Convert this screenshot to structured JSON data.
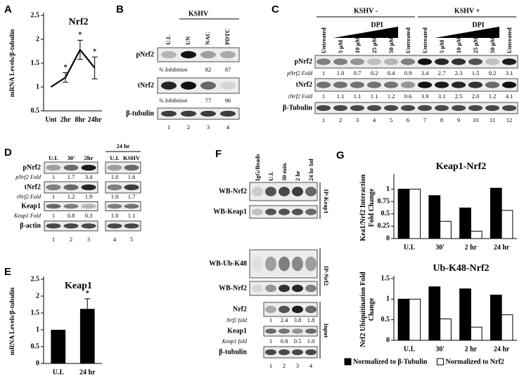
{
  "chart_data": [
    {
      "type": "line",
      "panel_label": "A",
      "title": "Nrf2",
      "y_label": "mRNA Levels/β-tubulin",
      "categories": [
        "Unt",
        "2hr",
        "8hr",
        "24hr"
      ],
      "values": [
        1,
        1.2,
        1.78,
        1.4
      ],
      "errors": [
        null,
        0.1,
        0.2,
        0.23
      ],
      "significance": [
        null,
        "*",
        "*",
        "*"
      ],
      "color": "#000000",
      "ylim": [
        0.5,
        2.5
      ],
      "yticks": [
        0.5,
        1,
        1.5,
        2,
        2.5
      ]
    },
    {
      "type": "bar",
      "panel_label": "E",
      "title": "Keap1",
      "y_label": "mRNA Levels/β-tubulin",
      "categories": [
        "U.I.",
        "24 hr"
      ],
      "values": [
        1,
        1.62
      ],
      "errors": [
        null,
        0.3
      ],
      "significance": [
        null,
        "*"
      ],
      "color": "#000000",
      "ylim": [
        0,
        2.5
      ],
      "yticks": [
        0,
        0.5,
        1,
        1.5,
        2,
        2.5
      ]
    },
    {
      "type": "bar",
      "panel_label": "G",
      "title": "Keap1-Nrf2",
      "y_label": "Kea1/Nrf2 Interaction Fold Change",
      "categories": [
        "U.I.",
        "30'",
        "2 hr",
        "24 hr"
      ],
      "series": [
        {
          "color": "#000000",
          "values": [
            1,
            0.87,
            0.62,
            1.02
          ]
        },
        {
          "color": "#ffffff",
          "values": [
            1,
            0.35,
            0.15,
            0.57
          ]
        }
      ],
      "ylim": [
        0,
        1.25
      ],
      "yticks": [
        0,
        0.25,
        0.5,
        0.75,
        1
      ]
    },
    {
      "type": "bar",
      "title": "Ub-K48-Nrf2",
      "y_label": "Nrf2 Ubiquitination Fold Change",
      "categories": [
        "U.I.",
        "30'",
        "2 hr",
        "24 hr"
      ],
      "series": [
        {
          "name": "Normalized to β-Tubulin",
          "color": "#000000",
          "values": [
            1,
            1.3,
            1.25,
            1.1
          ]
        },
        {
          "name": "Normalized to Nrf2",
          "color": "#ffffff",
          "values": [
            1,
            0.52,
            0.32,
            0.62
          ]
        }
      ],
      "ylim": [
        0,
        1.5
      ],
      "yticks": [
        0,
        0.5,
        1,
        1.5
      ],
      "legend": "bottom"
    }
  ],
  "blots": {
    "B": {
      "panel_label": "B",
      "header": "KSHV",
      "lanes": [
        "U.I.",
        "UN",
        "NAC",
        "PDTC"
      ],
      "rows": [
        {
          "label": "pNrf2"
        },
        {
          "label": "% Inhibition",
          "values": [
            null,
            null,
            "82",
            "87"
          ]
        },
        {
          "label": "tNrf2"
        },
        {
          "label": "% Inhibition",
          "values": [
            null,
            null,
            "77",
            "96"
          ]
        },
        {
          "label": "β-tubulin"
        }
      ],
      "lane_numbers": [
        "1",
        "2",
        "3",
        "4"
      ]
    },
    "C": {
      "panel_label": "C",
      "groups": [
        {
          "label": "KSHV -",
          "wedge": "DPI"
        },
        {
          "label": "KSHV +",
          "wedge": "DPI"
        }
      ],
      "lanes": [
        "Untreated",
        "5 μM",
        "10 μM",
        "25 μM",
        "50 μM",
        "Untreated",
        "Untreated",
        "5 μM",
        "10 μM",
        "25 μM",
        "50 μM",
        "Untreated"
      ],
      "rows": [
        {
          "label": "pNrf2"
        },
        {
          "label": "pNrf2 Fold",
          "values": [
            "1",
            "1.0",
            "0.7",
            "0.2",
            "0.4",
            "0.9",
            "3.4",
            "2.7",
            "2.3",
            "1.5",
            "0.2",
            "3.1"
          ]
        },
        {
          "label": "tNrf2"
        },
        {
          "label": "tNrf2 Fold",
          "values": [
            "1",
            "1.1",
            "1.1",
            "1.1",
            "1.2",
            "0.6",
            "3.9",
            "3.1",
            "2.5",
            "2.0",
            "1.2",
            "4.1"
          ]
        },
        {
          "label": "β-Tubulin"
        }
      ],
      "lane_numbers": [
        "1",
        "2",
        "3",
        "4",
        "5",
        "6",
        "7",
        "8",
        "9",
        "10",
        "11",
        "12"
      ]
    },
    "D": {
      "panel_label": "D",
      "header": "24 hr",
      "lanes": [
        "U.I.",
        "30'",
        "2hr",
        "U.I.",
        "KSHV"
      ],
      "rows": [
        {
          "label": "pNrf2"
        },
        {
          "label": "pNrf2 Fold",
          "values": [
            "1",
            "1.7",
            "3.4",
            "1.0",
            "1.6"
          ]
        },
        {
          "label": "tNrf2"
        },
        {
          "label": "tNrf2 Fold",
          "values": [
            "1",
            "1.2",
            "1.9",
            "1.0",
            "1.7"
          ]
        },
        {
          "label": "Keap1"
        },
        {
          "label": "Keap1 Fold",
          "values": [
            "1",
            "0.8",
            "0.3",
            "1.0",
            "1.1"
          ]
        },
        {
          "label": "β-actin"
        }
      ],
      "lane_numbers": [
        "1",
        "2",
        "3",
        "4",
        "5"
      ]
    },
    "F": {
      "panel_label": "F",
      "lanes": [
        "IgG/Beads",
        "U.I.",
        "30 min.",
        "2 hr",
        "24 hr Inf"
      ],
      "sections": [
        {
          "label": "IP-Keap1",
          "rows": [
            {
              "label": "WB-Nrf2"
            },
            {
              "label": "WB-Keap1"
            }
          ]
        },
        {
          "label": "IP-Nrf2",
          "rows": [
            {
              "label": "WB-Ub-K48"
            },
            {
              "label": "WB-Nrf2"
            }
          ]
        },
        {
          "label": "Input",
          "rows": [
            {
              "label": "Nrf2"
            },
            {
              "label": "Nrf2 fold",
              "values": [
                "1",
                "2.4",
                "3.8",
                "1.8"
              ]
            },
            {
              "label": "Keap1"
            },
            {
              "label": "Keap1 fold",
              "values": [
                "1",
                "0.8",
                "0.5",
                "1.0"
              ]
            },
            {
              "label": "β-tubulin"
            }
          ]
        }
      ],
      "lane_numbers": [
        "1",
        "2",
        "3",
        "4"
      ]
    }
  }
}
